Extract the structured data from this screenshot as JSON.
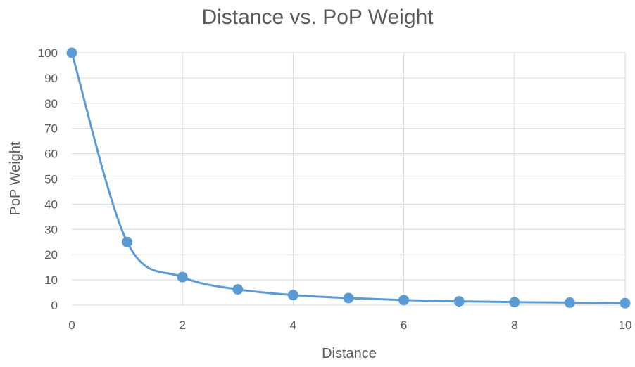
{
  "chart_data": {
    "type": "scatter",
    "title": "Distance vs. PoP Weight",
    "xlabel": "Distance",
    "ylabel": "PoP Weight",
    "xlim": [
      0,
      10
    ],
    "ylim": [
      0,
      100
    ],
    "x_ticks": [
      0,
      2,
      4,
      6,
      8,
      10
    ],
    "y_ticks": [
      0,
      10,
      20,
      30,
      40,
      50,
      60,
      70,
      80,
      90,
      100
    ],
    "grid": true,
    "smooth_line": true,
    "legend": "none",
    "series": [
      {
        "x": [
          0,
          1,
          2,
          3,
          4,
          5,
          6,
          7,
          8,
          9,
          10
        ],
        "values": [
          100,
          25,
          11.1,
          6.25,
          4,
          2.8,
          2,
          1.5,
          1.2,
          1,
          0.8
        ],
        "color": "#5b9bd5"
      }
    ]
  }
}
